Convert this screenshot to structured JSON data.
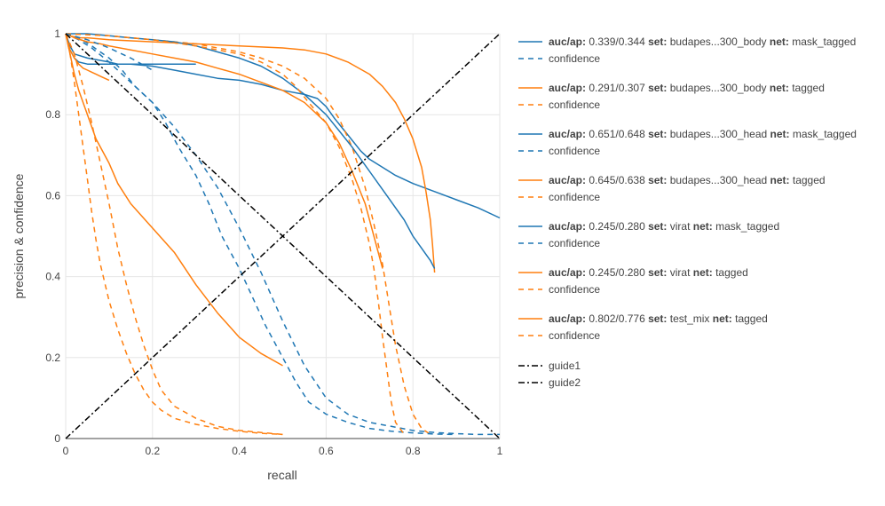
{
  "chart_data": {
    "type": "line",
    "xlabel": "recall",
    "ylabel": "precision & confidence",
    "xlim": [
      0,
      1
    ],
    "ylim": [
      0,
      1
    ],
    "x_ticks": [
      "0",
      "0.2",
      "0.4",
      "0.6",
      "0.8",
      "1"
    ],
    "y_ticks": [
      "0",
      "0.2",
      "0.4",
      "0.6",
      "0.8",
      "1"
    ],
    "grid": true,
    "legend_placement": "right",
    "colors": {
      "blue": "#1f77b4",
      "orange": "#ff7f0e",
      "black": "#000000"
    },
    "series": [
      {
        "legend": [
          [
            "auc/ap:",
            " 0.339/0.344 "
          ],
          [
            "set:",
            " budapes...300_body "
          ],
          [
            "net:",
            " mask_tagged"
          ]
        ],
        "color": "#1f77b4",
        "dash": "solid",
        "x": [
          0,
          0.01,
          0.02,
          0.05,
          0.1,
          0.12,
          0.15,
          0.2,
          0.25,
          0.3,
          0.35,
          0.4,
          0.45,
          0.5,
          0.55,
          0.58,
          0.6,
          0.62,
          0.65,
          0.68,
          0.7,
          0.73,
          0.76,
          0.8,
          0.85,
          0.9,
          0.95,
          1.0
        ],
        "y": [
          1.0,
          0.97,
          0.95,
          0.94,
          0.93,
          0.925,
          0.925,
          0.92,
          0.91,
          0.9,
          0.89,
          0.885,
          0.875,
          0.86,
          0.85,
          0.84,
          0.82,
          0.79,
          0.75,
          0.71,
          0.69,
          0.67,
          0.65,
          0.63,
          0.61,
          0.59,
          0.57,
          0.545
        ]
      },
      {
        "legend": [
          [
            "",
            "confidence"
          ]
        ],
        "color": "#1f77b4",
        "dash": "dash",
        "x": [
          0,
          0.03,
          0.06,
          0.1,
          0.15,
          0.2,
          0.25,
          0.3,
          0.35,
          0.4,
          0.45,
          0.5,
          0.55,
          0.6,
          0.65,
          0.7,
          0.75,
          0.8,
          0.85,
          0.9,
          0.95,
          1.0
        ],
        "y": [
          1.0,
          0.985,
          0.965,
          0.93,
          0.88,
          0.83,
          0.77,
          0.7,
          0.62,
          0.52,
          0.41,
          0.29,
          0.18,
          0.1,
          0.06,
          0.04,
          0.03,
          0.02,
          0.015,
          0.012,
          0.01,
          0.01
        ]
      },
      {
        "legend": [
          [
            "auc/ap:",
            " 0.291/0.307 "
          ],
          [
            "set:",
            " budapes...300_body "
          ],
          [
            "net:",
            " tagged"
          ]
        ],
        "color": "#ff7f0e",
        "dash": "solid",
        "x": [
          0,
          0.01,
          0.03,
          0.05,
          0.1,
          0.2,
          0.3,
          0.4,
          0.5,
          0.55,
          0.6,
          0.65,
          0.7,
          0.73,
          0.76,
          0.78,
          0.8,
          0.82,
          0.83,
          0.84,
          0.845,
          0.85
        ],
        "y": [
          1.0,
          0.995,
          0.99,
          0.99,
          0.985,
          0.98,
          0.975,
          0.97,
          0.965,
          0.96,
          0.95,
          0.93,
          0.9,
          0.87,
          0.83,
          0.79,
          0.74,
          0.67,
          0.61,
          0.54,
          0.48,
          0.41
        ]
      },
      {
        "legend": [
          [
            "",
            "confidence"
          ]
        ],
        "color": "#ff7f0e",
        "dash": "dash",
        "x": [
          0,
          0.05,
          0.1,
          0.15,
          0.2,
          0.25,
          0.3,
          0.35,
          0.4,
          0.45,
          0.5,
          0.55,
          0.6,
          0.63,
          0.66,
          0.69,
          0.71,
          0.73,
          0.745,
          0.76,
          0.78,
          0.8,
          0.82,
          0.84
        ],
        "y": [
          1.0,
          0.998,
          0.995,
          0.99,
          0.985,
          0.98,
          0.975,
          0.965,
          0.955,
          0.94,
          0.92,
          0.89,
          0.84,
          0.79,
          0.72,
          0.62,
          0.53,
          0.43,
          0.33,
          0.23,
          0.13,
          0.06,
          0.025,
          0.01
        ]
      },
      {
        "legend": [
          [
            "auc/ap:",
            " 0.651/0.648 "
          ],
          [
            "set:",
            " budapes...300_head "
          ],
          [
            "net:",
            " mask_tagged"
          ]
        ],
        "color": "#1f77b4",
        "dash": "solid",
        "x": [
          0,
          0.02,
          0.05,
          0.1,
          0.15,
          0.2,
          0.25,
          0.3,
          0.35,
          0.4,
          0.45,
          0.5,
          0.55,
          0.6,
          0.63,
          0.66,
          0.7,
          0.74,
          0.78,
          0.8,
          0.82,
          0.84,
          0.85
        ],
        "y": [
          1.0,
          1.0,
          1.0,
          0.995,
          0.99,
          0.985,
          0.98,
          0.97,
          0.955,
          0.94,
          0.92,
          0.89,
          0.85,
          0.8,
          0.76,
          0.72,
          0.66,
          0.6,
          0.54,
          0.5,
          0.47,
          0.44,
          0.42
        ]
      },
      {
        "legend": [
          [
            "",
            "confidence"
          ]
        ],
        "color": "#1f77b4",
        "dash": "dash",
        "x": [
          0,
          0.03,
          0.06,
          0.1,
          0.13,
          0.16,
          0.2,
          0.23,
          0.26,
          0.3,
          0.33,
          0.36,
          0.4,
          0.43,
          0.46,
          0.5,
          0.53,
          0.56,
          0.6,
          0.65,
          0.7,
          0.75,
          0.8,
          0.85,
          0.9
        ],
        "y": [
          1.0,
          0.99,
          0.97,
          0.94,
          0.91,
          0.87,
          0.83,
          0.78,
          0.72,
          0.65,
          0.58,
          0.5,
          0.42,
          0.35,
          0.28,
          0.2,
          0.14,
          0.09,
          0.06,
          0.04,
          0.025,
          0.018,
          0.014,
          0.011,
          0.01
        ]
      },
      {
        "legend": [
          [
            "auc/ap:",
            " 0.645/0.638 "
          ],
          [
            "set:",
            " budapes...300_head "
          ],
          [
            "net:",
            " tagged"
          ]
        ],
        "color": "#ff7f0e",
        "dash": "solid",
        "x": [
          0,
          0.02,
          0.05,
          0.08,
          0.1,
          0.15,
          0.2,
          0.25,
          0.3,
          0.35,
          0.4,
          0.45,
          0.5,
          0.55,
          0.6,
          0.63,
          0.66,
          0.69,
          0.71,
          0.73
        ],
        "y": [
          1.0,
          0.99,
          0.98,
          0.975,
          0.97,
          0.96,
          0.95,
          0.94,
          0.93,
          0.915,
          0.9,
          0.88,
          0.86,
          0.83,
          0.78,
          0.73,
          0.66,
          0.58,
          0.5,
          0.42
        ]
      },
      {
        "legend": [
          [
            "",
            "confidence"
          ]
        ],
        "color": "#ff7f0e",
        "dash": "dash",
        "x": [
          0,
          0.1,
          0.2,
          0.3,
          0.4,
          0.45,
          0.5,
          0.53,
          0.56,
          0.6,
          0.63,
          0.66,
          0.68,
          0.7,
          0.71,
          0.72,
          0.73,
          0.74,
          0.75,
          0.76,
          0.78
        ],
        "y": [
          1.0,
          0.995,
          0.985,
          0.97,
          0.95,
          0.93,
          0.9,
          0.87,
          0.83,
          0.78,
          0.72,
          0.64,
          0.57,
          0.48,
          0.42,
          0.34,
          0.25,
          0.17,
          0.09,
          0.04,
          0.01
        ]
      },
      {
        "legend": [
          [
            "auc/ap:",
            " 0.245/0.280 "
          ],
          [
            "set:",
            " virat "
          ],
          [
            "net:",
            " mask_tagged"
          ]
        ],
        "color": "#1f77b4",
        "dash": "solid",
        "x": [
          0,
          0.005,
          0.01,
          0.02,
          0.03,
          0.05,
          0.1,
          0.15,
          0.2,
          0.25,
          0.3
        ],
        "y": [
          1.0,
          0.98,
          0.96,
          0.94,
          0.93,
          0.925,
          0.925,
          0.925,
          0.925,
          0.925,
          0.925
        ]
      },
      {
        "legend": [
          [
            "",
            "confidence"
          ]
        ],
        "color": "#1f77b4",
        "dash": "dash",
        "x": [
          0,
          0.05,
          0.1,
          0.15,
          0.2
        ],
        "y": [
          1.0,
          0.985,
          0.965,
          0.94,
          0.91
        ]
      },
      {
        "legend": [
          [
            "auc/ap:",
            " 0.245/0.280 "
          ],
          [
            "set:",
            " virat "
          ],
          [
            "net:",
            " tagged"
          ]
        ],
        "color": "#ff7f0e",
        "dash": "solid",
        "x": [
          0,
          0.01,
          0.02,
          0.03,
          0.05,
          0.07,
          0.1,
          0.12,
          0.15,
          0.2,
          0.25,
          0.3,
          0.35,
          0.4,
          0.45,
          0.5
        ],
        "y": [
          1.0,
          0.95,
          0.9,
          0.86,
          0.8,
          0.74,
          0.68,
          0.63,
          0.58,
          0.52,
          0.46,
          0.38,
          0.31,
          0.25,
          0.21,
          0.18
        ]
      },
      {
        "legend": [
          [
            "",
            "confidence"
          ]
        ],
        "color": "#ff7f0e",
        "dash": "dash",
        "x": [
          0,
          0.02,
          0.04,
          0.06,
          0.08,
          0.1,
          0.12,
          0.14,
          0.16,
          0.18,
          0.2,
          0.22,
          0.25,
          0.3,
          0.35,
          0.4,
          0.45,
          0.5
        ],
        "y": [
          1.0,
          0.95,
          0.87,
          0.78,
          0.68,
          0.58,
          0.47,
          0.38,
          0.3,
          0.23,
          0.17,
          0.12,
          0.08,
          0.05,
          0.03,
          0.02,
          0.015,
          0.01
        ]
      },
      {
        "legend": [
          [
            "auc/ap:",
            " 0.802/0.776 "
          ],
          [
            "set:",
            " test_mix "
          ],
          [
            "net:",
            " tagged"
          ]
        ],
        "color": "#ff7f0e",
        "dash": "solid",
        "x": [
          0,
          0.005,
          0.01,
          0.02,
          0.03,
          0.04,
          0.05,
          0.06,
          0.07,
          0.08,
          0.09,
          0.1
        ],
        "y": [
          1.0,
          0.98,
          0.96,
          0.94,
          0.925,
          0.915,
          0.91,
          0.905,
          0.9,
          0.895,
          0.89,
          0.885
        ]
      },
      {
        "legend": [
          [
            "",
            "confidence"
          ]
        ],
        "color": "#ff7f0e",
        "dash": "dash",
        "x": [
          0,
          0.01,
          0.02,
          0.03,
          0.04,
          0.05,
          0.06,
          0.07,
          0.08,
          0.1,
          0.12,
          0.14,
          0.16,
          0.18,
          0.2,
          0.22,
          0.25,
          0.3,
          0.35,
          0.4,
          0.45,
          0.5
        ],
        "y": [
          1.0,
          0.95,
          0.88,
          0.8,
          0.72,
          0.64,
          0.56,
          0.49,
          0.43,
          0.34,
          0.27,
          0.21,
          0.16,
          0.12,
          0.09,
          0.07,
          0.05,
          0.035,
          0.025,
          0.018,
          0.013,
          0.01
        ]
      },
      {
        "legend": [
          [
            "",
            "guide1"
          ]
        ],
        "color": "#000000",
        "dash": "dashdot",
        "x": [
          0,
          1
        ],
        "y": [
          0,
          1
        ]
      },
      {
        "legend": [
          [
            "",
            "guide2"
          ]
        ],
        "color": "#000000",
        "dash": "dashdot",
        "x": [
          0,
          1
        ],
        "y": [
          1,
          0
        ]
      }
    ]
  }
}
